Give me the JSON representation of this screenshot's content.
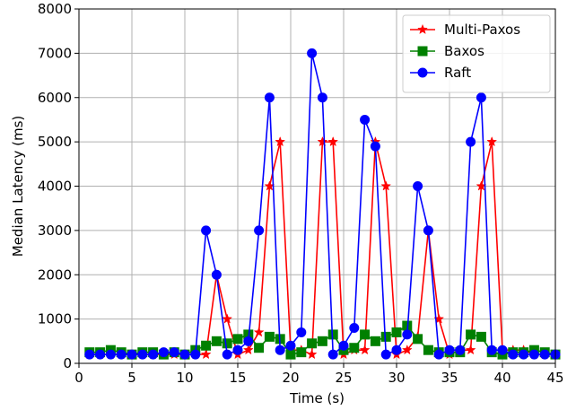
{
  "chart_data": {
    "type": "line",
    "xlabel": "Time (s)",
    "ylabel": "Median Latency (ms)",
    "xlim": [
      0,
      45
    ],
    "ylim": [
      0,
      8000
    ],
    "xticks": [
      0,
      5,
      10,
      15,
      20,
      25,
      30,
      35,
      40,
      45
    ],
    "yticks": [
      0,
      1000,
      2000,
      3000,
      4000,
      5000,
      6000,
      7000,
      8000
    ],
    "grid": true,
    "legend_position": "top-right",
    "series": [
      {
        "name": "Multi-Paxos",
        "color": "#ff0000",
        "marker": "star",
        "x": [
          1,
          2,
          3,
          4,
          5,
          6,
          7,
          8,
          9,
          10,
          11,
          12,
          13,
          14,
          15,
          16,
          17,
          18,
          19,
          20,
          21,
          22,
          23,
          24,
          25,
          26,
          27,
          28,
          29,
          30,
          31,
          32,
          33,
          34,
          35,
          36,
          37,
          38,
          39,
          40,
          41,
          42,
          43,
          44,
          45
        ],
        "values": [
          200,
          200,
          200,
          200,
          200,
          200,
          200,
          200,
          200,
          200,
          200,
          200,
          2000,
          1000,
          200,
          300,
          700,
          4000,
          5000,
          300,
          300,
          200,
          5000,
          5000,
          200,
          300,
          300,
          5000,
          4000,
          200,
          300,
          600,
          3000,
          1000,
          200,
          300,
          300,
          4000,
          5000,
          300,
          300,
          300,
          200,
          200,
          200
        ]
      },
      {
        "name": "Baxos",
        "color": "#008000",
        "marker": "square",
        "x": [
          1,
          2,
          3,
          4,
          5,
          6,
          7,
          8,
          9,
          10,
          11,
          12,
          13,
          14,
          15,
          16,
          17,
          18,
          19,
          20,
          21,
          22,
          23,
          24,
          25,
          26,
          27,
          28,
          29,
          30,
          31,
          32,
          33,
          34,
          35,
          36,
          37,
          38,
          39,
          40,
          41,
          42,
          43,
          44,
          45
        ],
        "values": [
          250,
          250,
          300,
          250,
          200,
          250,
          250,
          200,
          250,
          200,
          300,
          400,
          500,
          450,
          550,
          650,
          350,
          600,
          550,
          200,
          250,
          450,
          500,
          650,
          300,
          350,
          650,
          500,
          600,
          700,
          850,
          550,
          300,
          250,
          250,
          250,
          650,
          600,
          250,
          200,
          250,
          250,
          300,
          250,
          200
        ]
      },
      {
        "name": "Raft",
        "color": "#0000ff",
        "marker": "circle",
        "x": [
          1,
          2,
          3,
          4,
          5,
          6,
          7,
          8,
          9,
          10,
          11,
          12,
          13,
          14,
          15,
          16,
          17,
          18,
          19,
          20,
          21,
          22,
          23,
          24,
          25,
          26,
          27,
          28,
          29,
          30,
          31,
          32,
          33,
          34,
          35,
          36,
          37,
          38,
          39,
          40,
          41,
          42,
          43,
          44,
          45
        ],
        "values": [
          200,
          200,
          200,
          200,
          200,
          200,
          200,
          250,
          250,
          200,
          200,
          3000,
          2000,
          200,
          300,
          500,
          3000,
          6000,
          300,
          400,
          700,
          7000,
          6000,
          200,
          400,
          800,
          5500,
          4900,
          200,
          300,
          650,
          4000,
          3000,
          200,
          300,
          300,
          5000,
          6000,
          300,
          300,
          200,
          200,
          200,
          200,
          200
        ]
      }
    ]
  }
}
